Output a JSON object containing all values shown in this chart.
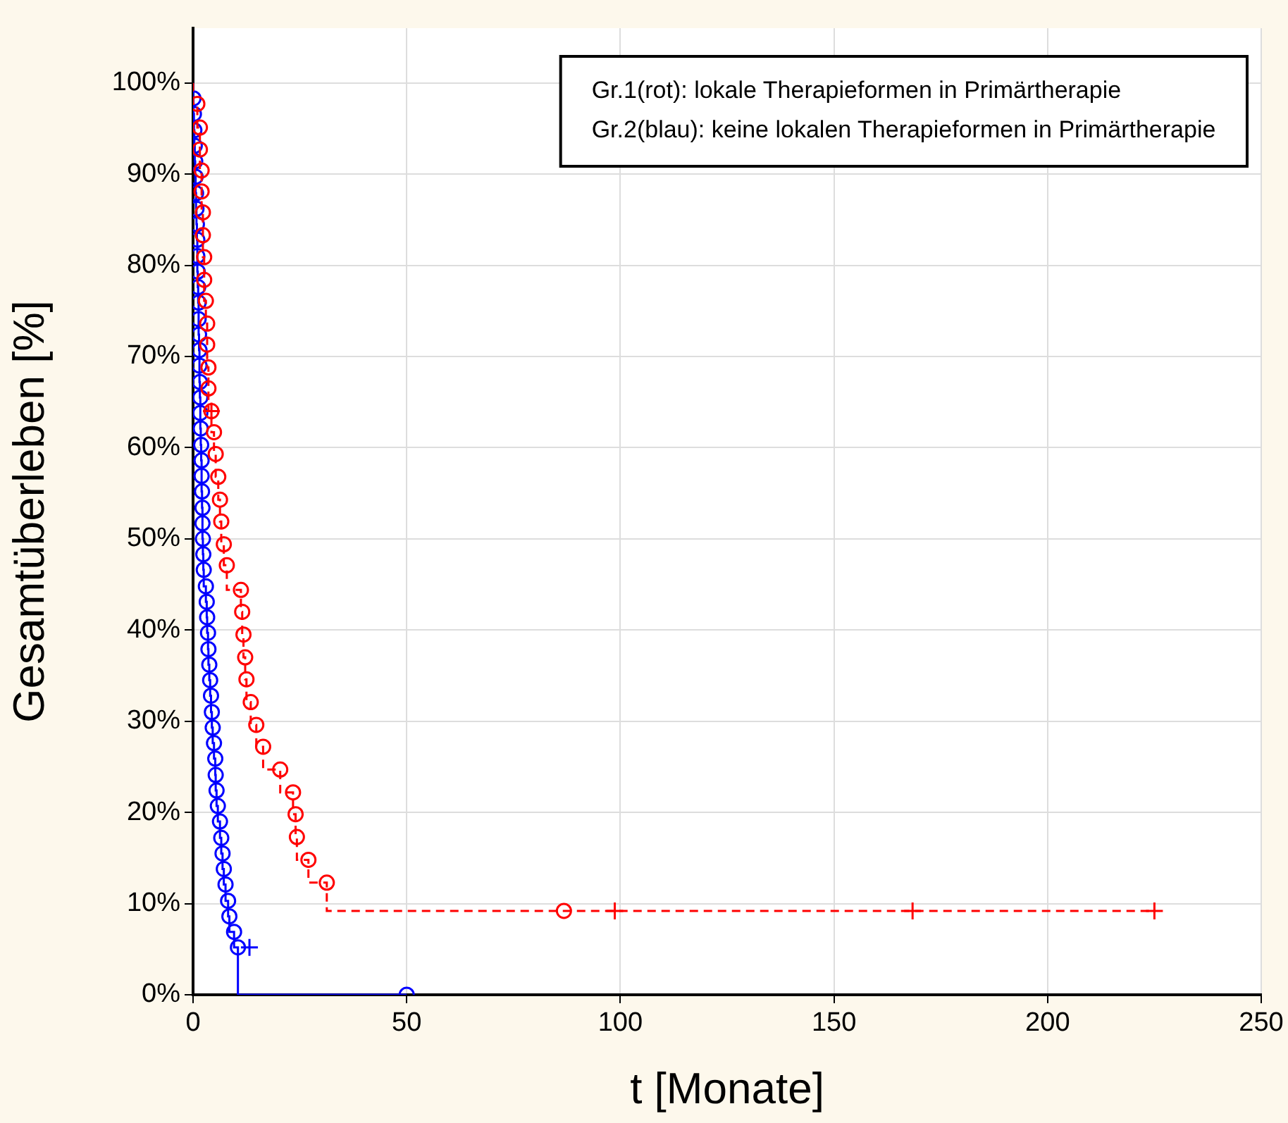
{
  "chart_data": {
    "type": "step",
    "xlabel": "t [Monate]",
    "ylabel": "Gesamtüberleben [%]",
    "xlim": [
      0,
      250
    ],
    "xticks": [
      0,
      50,
      100,
      150,
      200,
      250
    ],
    "ylim": [
      0,
      106
    ],
    "yticks": [
      {
        "value": 0,
        "label": "0%"
      },
      {
        "value": 10,
        "label": "10%"
      },
      {
        "value": 20,
        "label": "20%"
      },
      {
        "value": 30,
        "label": "30%"
      },
      {
        "value": 40,
        "label": "40%"
      },
      {
        "value": 50,
        "label": "50%"
      },
      {
        "value": 60,
        "label": "60%"
      },
      {
        "value": 70,
        "label": "70%"
      },
      {
        "value": 80,
        "label": "80%"
      },
      {
        "value": 90,
        "label": "90%"
      },
      {
        "value": 100,
        "label": "100%"
      }
    ],
    "grid": true,
    "annotations": [
      "Gr.1(rot): lokale Therapieformen in Primärtherapie",
      "Gr.2(blau): keine lokalen Therapieformen in Primärtherapie"
    ],
    "series": [
      {
        "color": "#ff0000",
        "line_style": "dashed",
        "marker": "none",
        "x": [
          0,
          1.0,
          1.6,
          1.6,
          2.0,
          2.0,
          2.3,
          2.3,
          2.6,
          2.6,
          3.0,
          3.3,
          3.3,
          3.6,
          3.6,
          4.3,
          4.9,
          5.3,
          5.9,
          6.3,
          6.6,
          7.2,
          7.9,
          11.2,
          11.5,
          11.8,
          12.2,
          12.5,
          13.5,
          14.8,
          16.4,
          20.4,
          23.4,
          24.0,
          24.3,
          27.0,
          31.3,
          86.8,
          225
        ],
        "values": [
          100,
          97.7,
          95.1,
          92.7,
          90.4,
          88.1,
          85.8,
          83.3,
          80.9,
          78.4,
          76.1,
          73.6,
          71.3,
          68.8,
          66.5,
          64.0,
          61.7,
          59.3,
          56.8,
          54.3,
          51.9,
          49.4,
          47.1,
          44.4,
          42.0,
          39.5,
          37.0,
          34.6,
          32.1,
          29.6,
          27.2,
          24.7,
          22.2,
          19.8,
          17.3,
          14.8,
          12.3,
          9.2,
          9.2
        ]
      },
      {
        "type": "scatter",
        "color": "#ff0000",
        "marker": "circle",
        "x": [
          1.0,
          1.6,
          1.6,
          2.0,
          2.0,
          2.3,
          2.3,
          2.6,
          2.6,
          3.0,
          3.3,
          3.3,
          3.6,
          3.6,
          4.3,
          4.9,
          5.3,
          5.9,
          6.3,
          6.6,
          7.2,
          7.9,
          11.2,
          11.5,
          11.8,
          12.2,
          12.5,
          13.5,
          14.8,
          16.4,
          20.4,
          23.4,
          24.0,
          24.3,
          27.0,
          31.3,
          86.8
        ],
        "values": [
          97.7,
          95.1,
          92.7,
          90.4,
          88.1,
          85.8,
          83.3,
          80.9,
          78.4,
          76.1,
          73.6,
          71.3,
          68.8,
          66.5,
          64.0,
          61.7,
          59.3,
          56.8,
          54.3,
          51.9,
          49.4,
          47.1,
          44.4,
          42.0,
          39.5,
          37.0,
          34.6,
          32.1,
          29.6,
          27.2,
          24.7,
          22.2,
          19.8,
          17.3,
          14.8,
          12.3,
          9.2
        ]
      },
      {
        "type": "scatter",
        "color": "#ff0000",
        "marker": "cross",
        "x": [
          4.3,
          98.7,
          168.4,
          225
        ],
        "values": [
          64.0,
          9.2,
          9.2,
          9.2
        ]
      },
      {
        "color": "#0000ff",
        "line_style": "solid",
        "marker": "none",
        "x": [
          0,
          0.1,
          0.2,
          0.3,
          0.4,
          0.5,
          0.6,
          0.7,
          0.8,
          0.9,
          1.0,
          1.0,
          1.1,
          1.2,
          1.3,
          1.3,
          1.4,
          1.5,
          1.5,
          1.6,
          1.7,
          1.7,
          1.8,
          1.9,
          2.0,
          2.0,
          2.1,
          2.2,
          2.2,
          2.3,
          2.4,
          2.5,
          3.0,
          3.2,
          3.3,
          3.5,
          3.6,
          3.8,
          4.0,
          4.2,
          4.4,
          4.6,
          4.9,
          5.2,
          5.3,
          5.5,
          5.8,
          6.3,
          6.6,
          6.9,
          7.2,
          7.6,
          8.2,
          8.5,
          9.6,
          10.5,
          50
        ],
        "values": [
          100,
          98.3,
          96.6,
          94.8,
          93.1,
          91.4,
          89.7,
          87.9,
          86.2,
          84.5,
          82.8,
          81.0,
          79.3,
          77.6,
          75.9,
          74.1,
          72.4,
          70.7,
          69.0,
          67.2,
          65.5,
          63.8,
          62.1,
          60.3,
          58.6,
          56.9,
          55.2,
          53.4,
          51.7,
          50.0,
          48.3,
          46.6,
          44.8,
          43.1,
          41.4,
          39.7,
          37.9,
          36.2,
          34.5,
          32.8,
          31.0,
          29.3,
          27.6,
          25.9,
          24.1,
          22.4,
          20.7,
          19.0,
          17.2,
          15.5,
          13.8,
          12.1,
          10.3,
          8.6,
          6.9,
          5.2,
          0
        ]
      },
      {
        "type": "scatter",
        "color": "#0000ff",
        "marker": "circle",
        "x": [
          0.1,
          0.2,
          0.3,
          0.4,
          0.5,
          0.6,
          0.7,
          0.8,
          0.9,
          1.0,
          1.0,
          1.1,
          1.2,
          1.3,
          1.3,
          1.4,
          1.5,
          1.5,
          1.6,
          1.7,
          1.7,
          1.8,
          1.9,
          2.0,
          2.0,
          2.1,
          2.2,
          2.2,
          2.3,
          2.4,
          2.5,
          3.0,
          3.2,
          3.3,
          3.5,
          3.6,
          3.8,
          4.0,
          4.2,
          4.4,
          4.6,
          4.9,
          5.2,
          5.3,
          5.5,
          5.8,
          6.3,
          6.6,
          6.9,
          7.2,
          7.6,
          8.2,
          8.5,
          9.6,
          10.5,
          50
        ],
        "values": [
          98.3,
          96.6,
          94.8,
          93.1,
          91.4,
          89.7,
          87.9,
          86.2,
          84.5,
          82.8,
          81.0,
          79.3,
          77.6,
          75.9,
          74.1,
          72.4,
          70.7,
          69.0,
          67.2,
          65.5,
          63.8,
          62.1,
          60.3,
          58.6,
          56.9,
          55.2,
          53.4,
          51.7,
          50.0,
          48.3,
          46.6,
          44.8,
          43.1,
          41.4,
          39.7,
          37.9,
          36.2,
          34.5,
          32.8,
          31.0,
          29.3,
          27.6,
          25.9,
          24.1,
          22.4,
          20.7,
          19.0,
          17.2,
          15.5,
          13.8,
          12.1,
          10.3,
          8.6,
          6.9,
          5.2,
          0
        ]
      },
      {
        "type": "scatter",
        "color": "#0000ff",
        "marker": "cross",
        "x": [
          13.2
        ],
        "values": [
          5.2
        ]
      }
    ]
  }
}
